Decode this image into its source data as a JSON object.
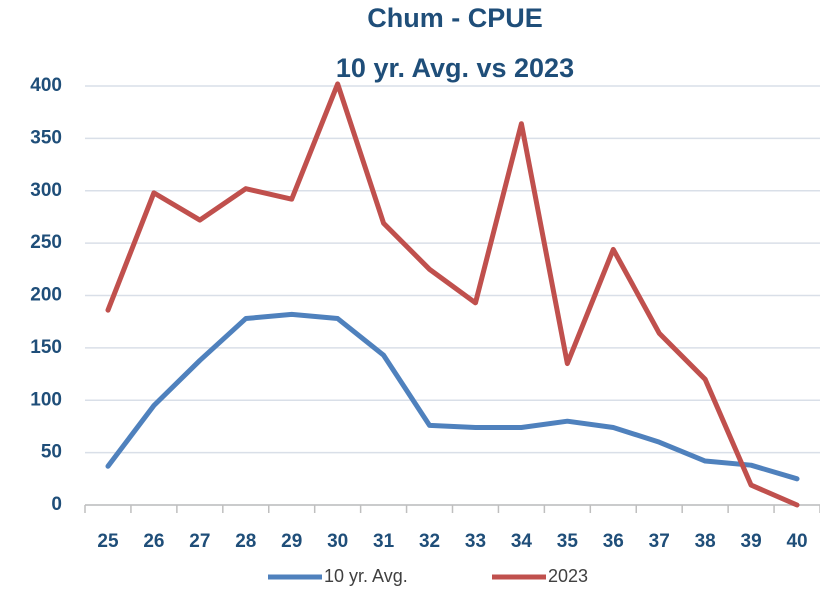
{
  "chart_data": {
    "type": "line",
    "title": "Chum - CPUE",
    "subtitle": "10 yr. Avg. vs 2023",
    "categories": [
      "25",
      "26",
      "27",
      "28",
      "29",
      "30",
      "31",
      "32",
      "33",
      "34",
      "35",
      "36",
      "37",
      "38",
      "39",
      "40"
    ],
    "series": [
      {
        "name": "10 yr. Avg.",
        "color": "#4f81bd",
        "values": [
          37,
          95,
          138,
          178,
          182,
          178,
          143,
          76,
          74,
          74,
          80,
          74,
          60,
          42,
          38,
          25
        ]
      },
      {
        "name": "2023",
        "color": "#c0504d",
        "values": [
          186,
          298,
          272,
          302,
          292,
          402,
          269,
          225,
          193,
          364,
          135,
          244,
          164,
          120,
          19,
          0
        ]
      }
    ],
    "ylim": [
      0,
      400
    ],
    "yticks": [
      0,
      50,
      100,
      150,
      200,
      250,
      300,
      350,
      400
    ],
    "grid": true,
    "legend": "bottom"
  }
}
